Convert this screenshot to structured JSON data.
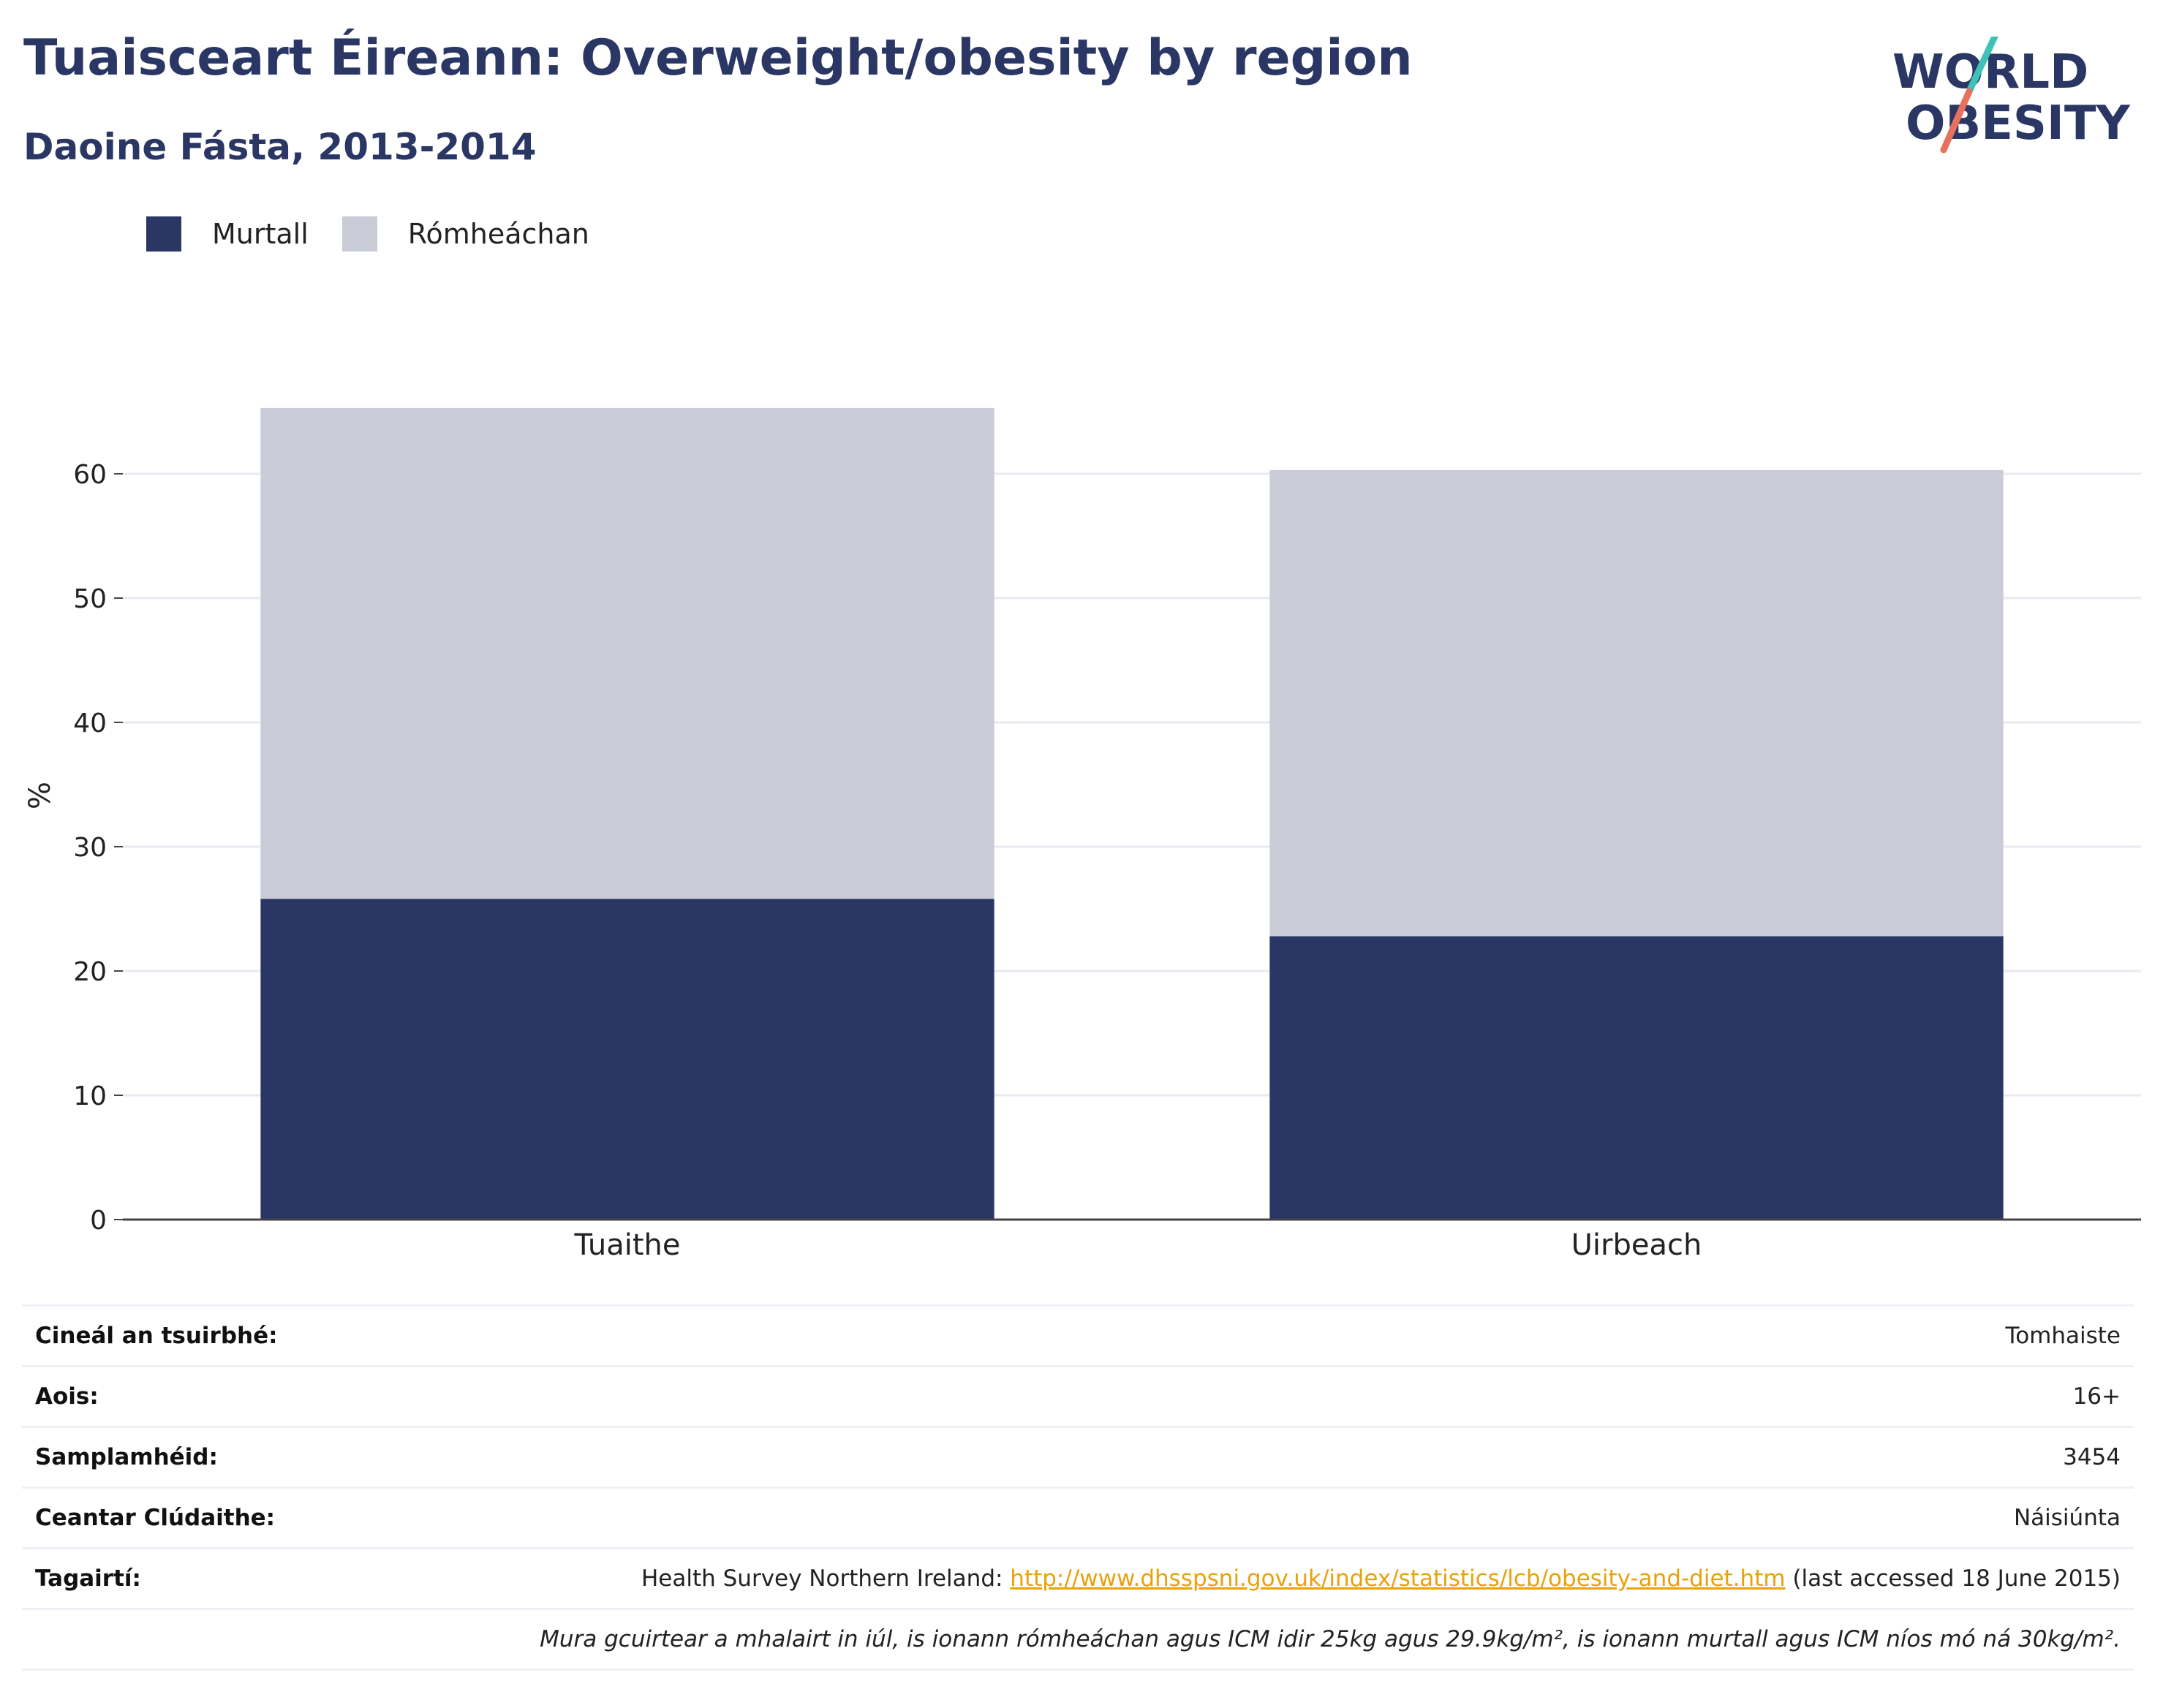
{
  "header": {
    "title": "Tuaisceart Éireann: Overweight/obesity by region",
    "subtitle": "Daoine Fásta, 2013-2014",
    "logo_line1": "WORLD",
    "logo_line2": "OBESITY"
  },
  "colors": {
    "obese": "#2a3764",
    "overweight": "#c9ccd7",
    "title": "#2a3764",
    "link": "#e8a20c",
    "logo_slash_top": "#3fc1b7",
    "logo_slash_bottom": "#e8705f"
  },
  "legend": {
    "items": [
      {
        "label": "Murtall"
      },
      {
        "label": "Rómheáchan"
      }
    ]
  },
  "chart_data": {
    "type": "bar",
    "stacked": true,
    "categories": [
      "Tuaithe",
      "Uirbeach"
    ],
    "series": [
      {
        "name": "Murtall",
        "values": [
          25.8,
          22.8
        ]
      },
      {
        "name": "Rómheáchan",
        "values": [
          39.5,
          37.5
        ]
      }
    ],
    "ylabel": "%",
    "xlabel": "",
    "ylim": [
      0,
      70
    ],
    "yticks": [
      0,
      10,
      20,
      30,
      40,
      50,
      60
    ],
    "grid": true,
    "legend_position": "top-left"
  },
  "info": {
    "survey_type_label": "Cineál an tsuirbhé:",
    "survey_type_value": "Tomhaiste",
    "age_label": "Aois:",
    "age_value": "16+",
    "sample_label": "Samplamhéid:",
    "sample_value": "3454",
    "coverage_label": "Ceantar Clúdaithe:",
    "coverage_value": "Náisiúnta",
    "references_label": "Tagairtí:",
    "reference_prefix": "Health Survey Northern Ireland: ",
    "reference_link": "http://www.dhsspsni.gov.uk/index/statistics/lcb/obesity-and-diet.htm",
    "reference_suffix": " (last accessed 18 June 2015)",
    "note": "Mura gcuirtear a mhalairt in iúl, is ionann rómheáchan agus ICM idir 25kg agus 29.9kg/m², is ionann murtall agus ICM níos mó ná 30kg/m²."
  }
}
